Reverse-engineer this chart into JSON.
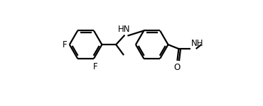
{
  "background": "#ffffff",
  "line_color": "#000000",
  "line_width": 1.6,
  "dbo": 0.012,
  "figsize": [
    3.7,
    1.5
  ],
  "dpi": 100,
  "xlim": [
    0.0,
    1.0
  ],
  "ylim": [
    0.0,
    0.75
  ]
}
